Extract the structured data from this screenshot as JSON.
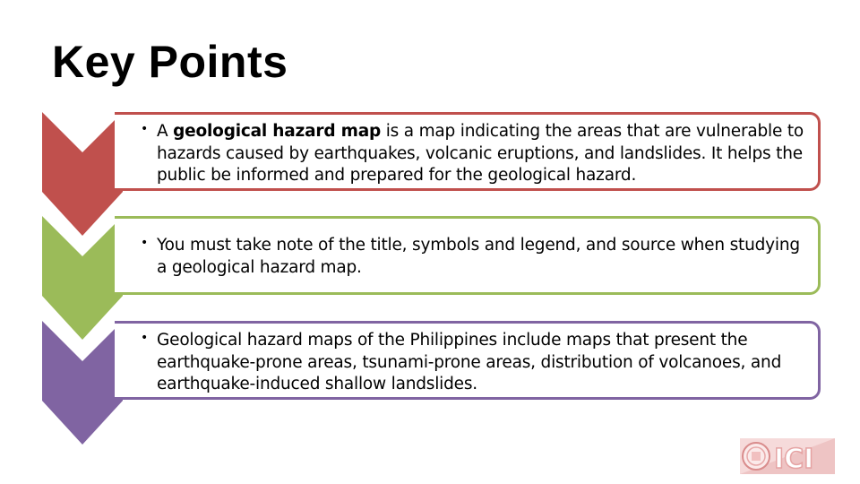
{
  "slide": {
    "title": "Key Points",
    "points": [
      {
        "parts": [
          {
            "text": "A ",
            "bold": false
          },
          {
            "text": "geological hazard map",
            "bold": true
          },
          {
            "text": " is a map indicating the areas that are vulnerable to hazards caused by earthquakes, volcanic eruptions, and landslides. It helps the public be informed and prepared for the geological hazard.",
            "bold": false
          }
        ]
      },
      {
        "parts": [
          {
            "text": "You must take note of the title, symbols and legend, and source when studying a geological hazard map.",
            "bold": false
          }
        ]
      },
      {
        "parts": [
          {
            "text": "Geological hazard maps of the Philippines include maps that present the earthquake-prone areas, tsunami-prone areas, distribution of volcanoes, and earthquake-induced shallow landslides.",
            "bold": false
          }
        ]
      }
    ],
    "bullet_symbol": "•",
    "colors": {
      "red": "#c0504d",
      "green": "#9bbb59",
      "purple": "#8064a2"
    },
    "logo": {
      "text": "ICI",
      "icon": "seal-logo-icon"
    }
  }
}
